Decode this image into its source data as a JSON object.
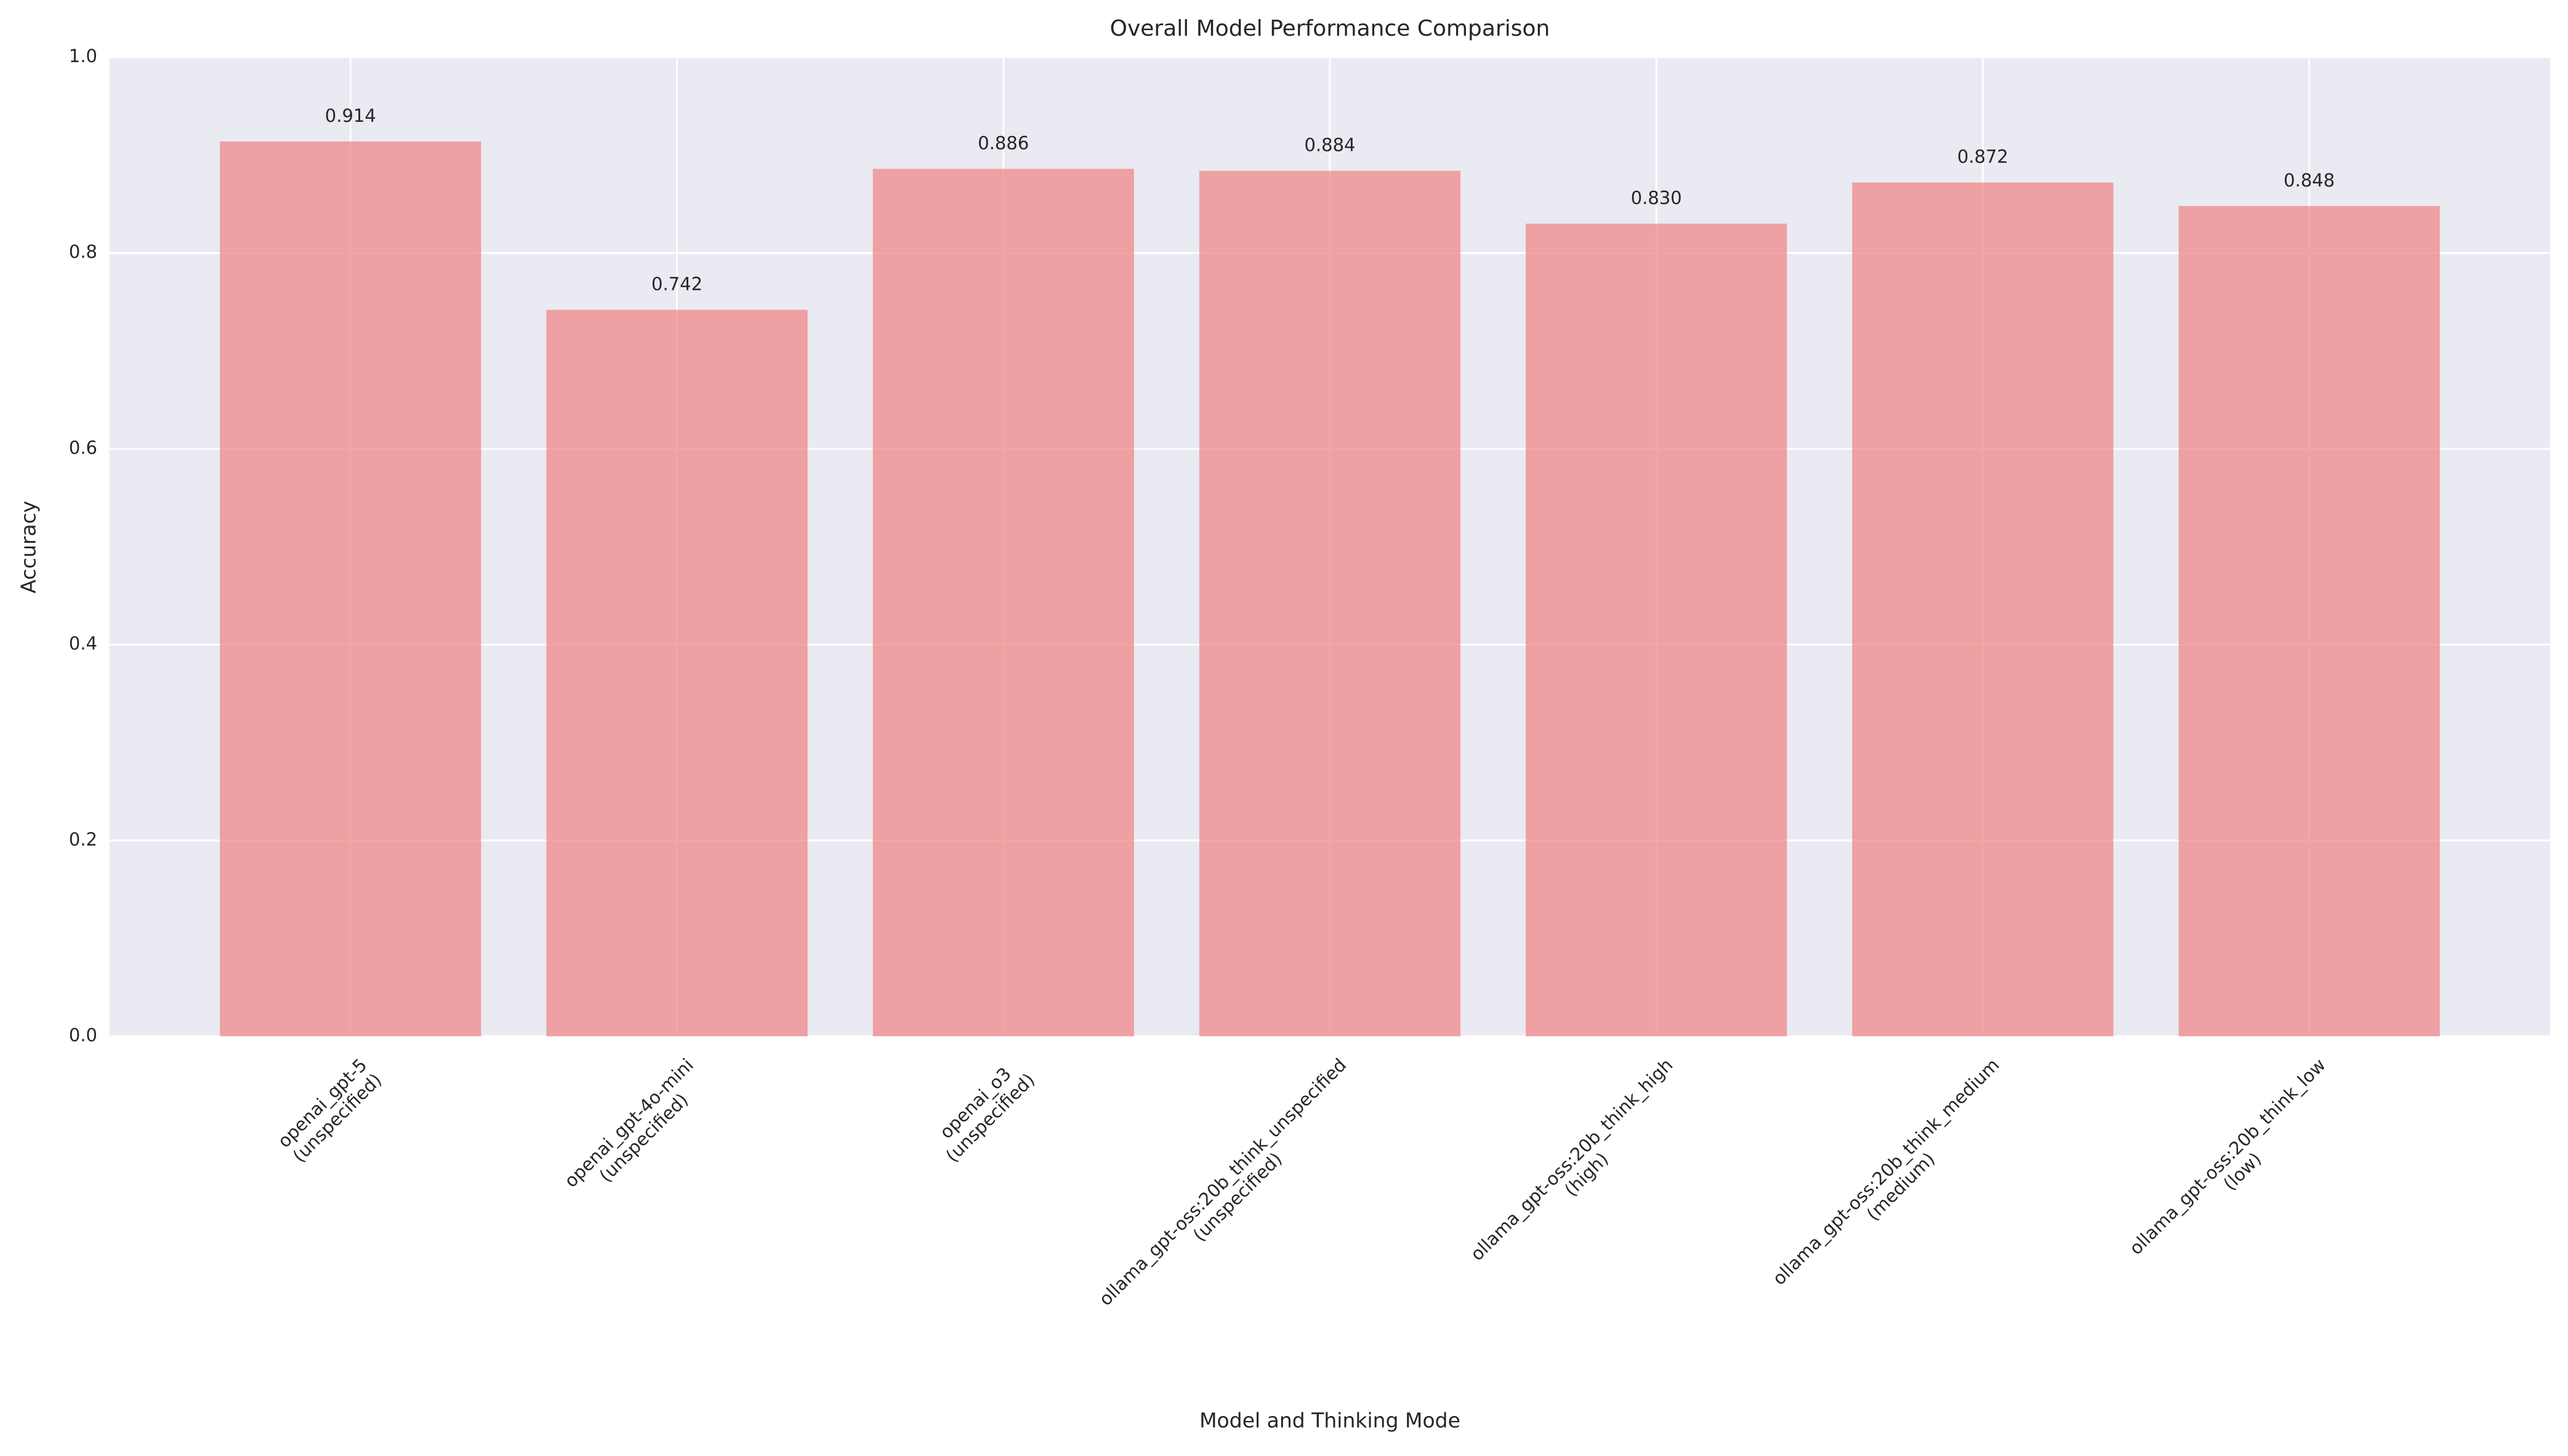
{
  "chart_data": {
    "type": "bar",
    "title": "Overall Model Performance Comparison",
    "x_label": "Model and Thinking Mode",
    "y_label": "Accuracy",
    "categories": [
      "openai_gpt-5\n(unspecified)",
      "openai_gpt-4o-mini\n(unspecified)",
      "openai_o3\n(unspecified)",
      "ollama_gpt-oss:20b_think_unspecified\n(unspecified)",
      "ollama_gpt-oss:20b_think_high\n(high)",
      "ollama_gpt-oss:20b_think_medium\n(medium)",
      "ollama_gpt-oss:20b_think_low\n(low)"
    ],
    "values": [
      0.914,
      0.742,
      0.886,
      0.884,
      0.83,
      0.872,
      0.848
    ],
    "value_labels": [
      "0.914",
      "0.742",
      "0.886",
      "0.884",
      "0.830",
      "0.872",
      "0.848"
    ],
    "color": "#f08080",
    "ylim": [
      0,
      1
    ],
    "yticks": [
      {
        "value": 0,
        "label": "0.0"
      },
      0.2,
      0.4,
      0.6,
      0.8,
      {
        "value": 1,
        "label": "1.0"
      }
    ],
    "grid": true
  }
}
